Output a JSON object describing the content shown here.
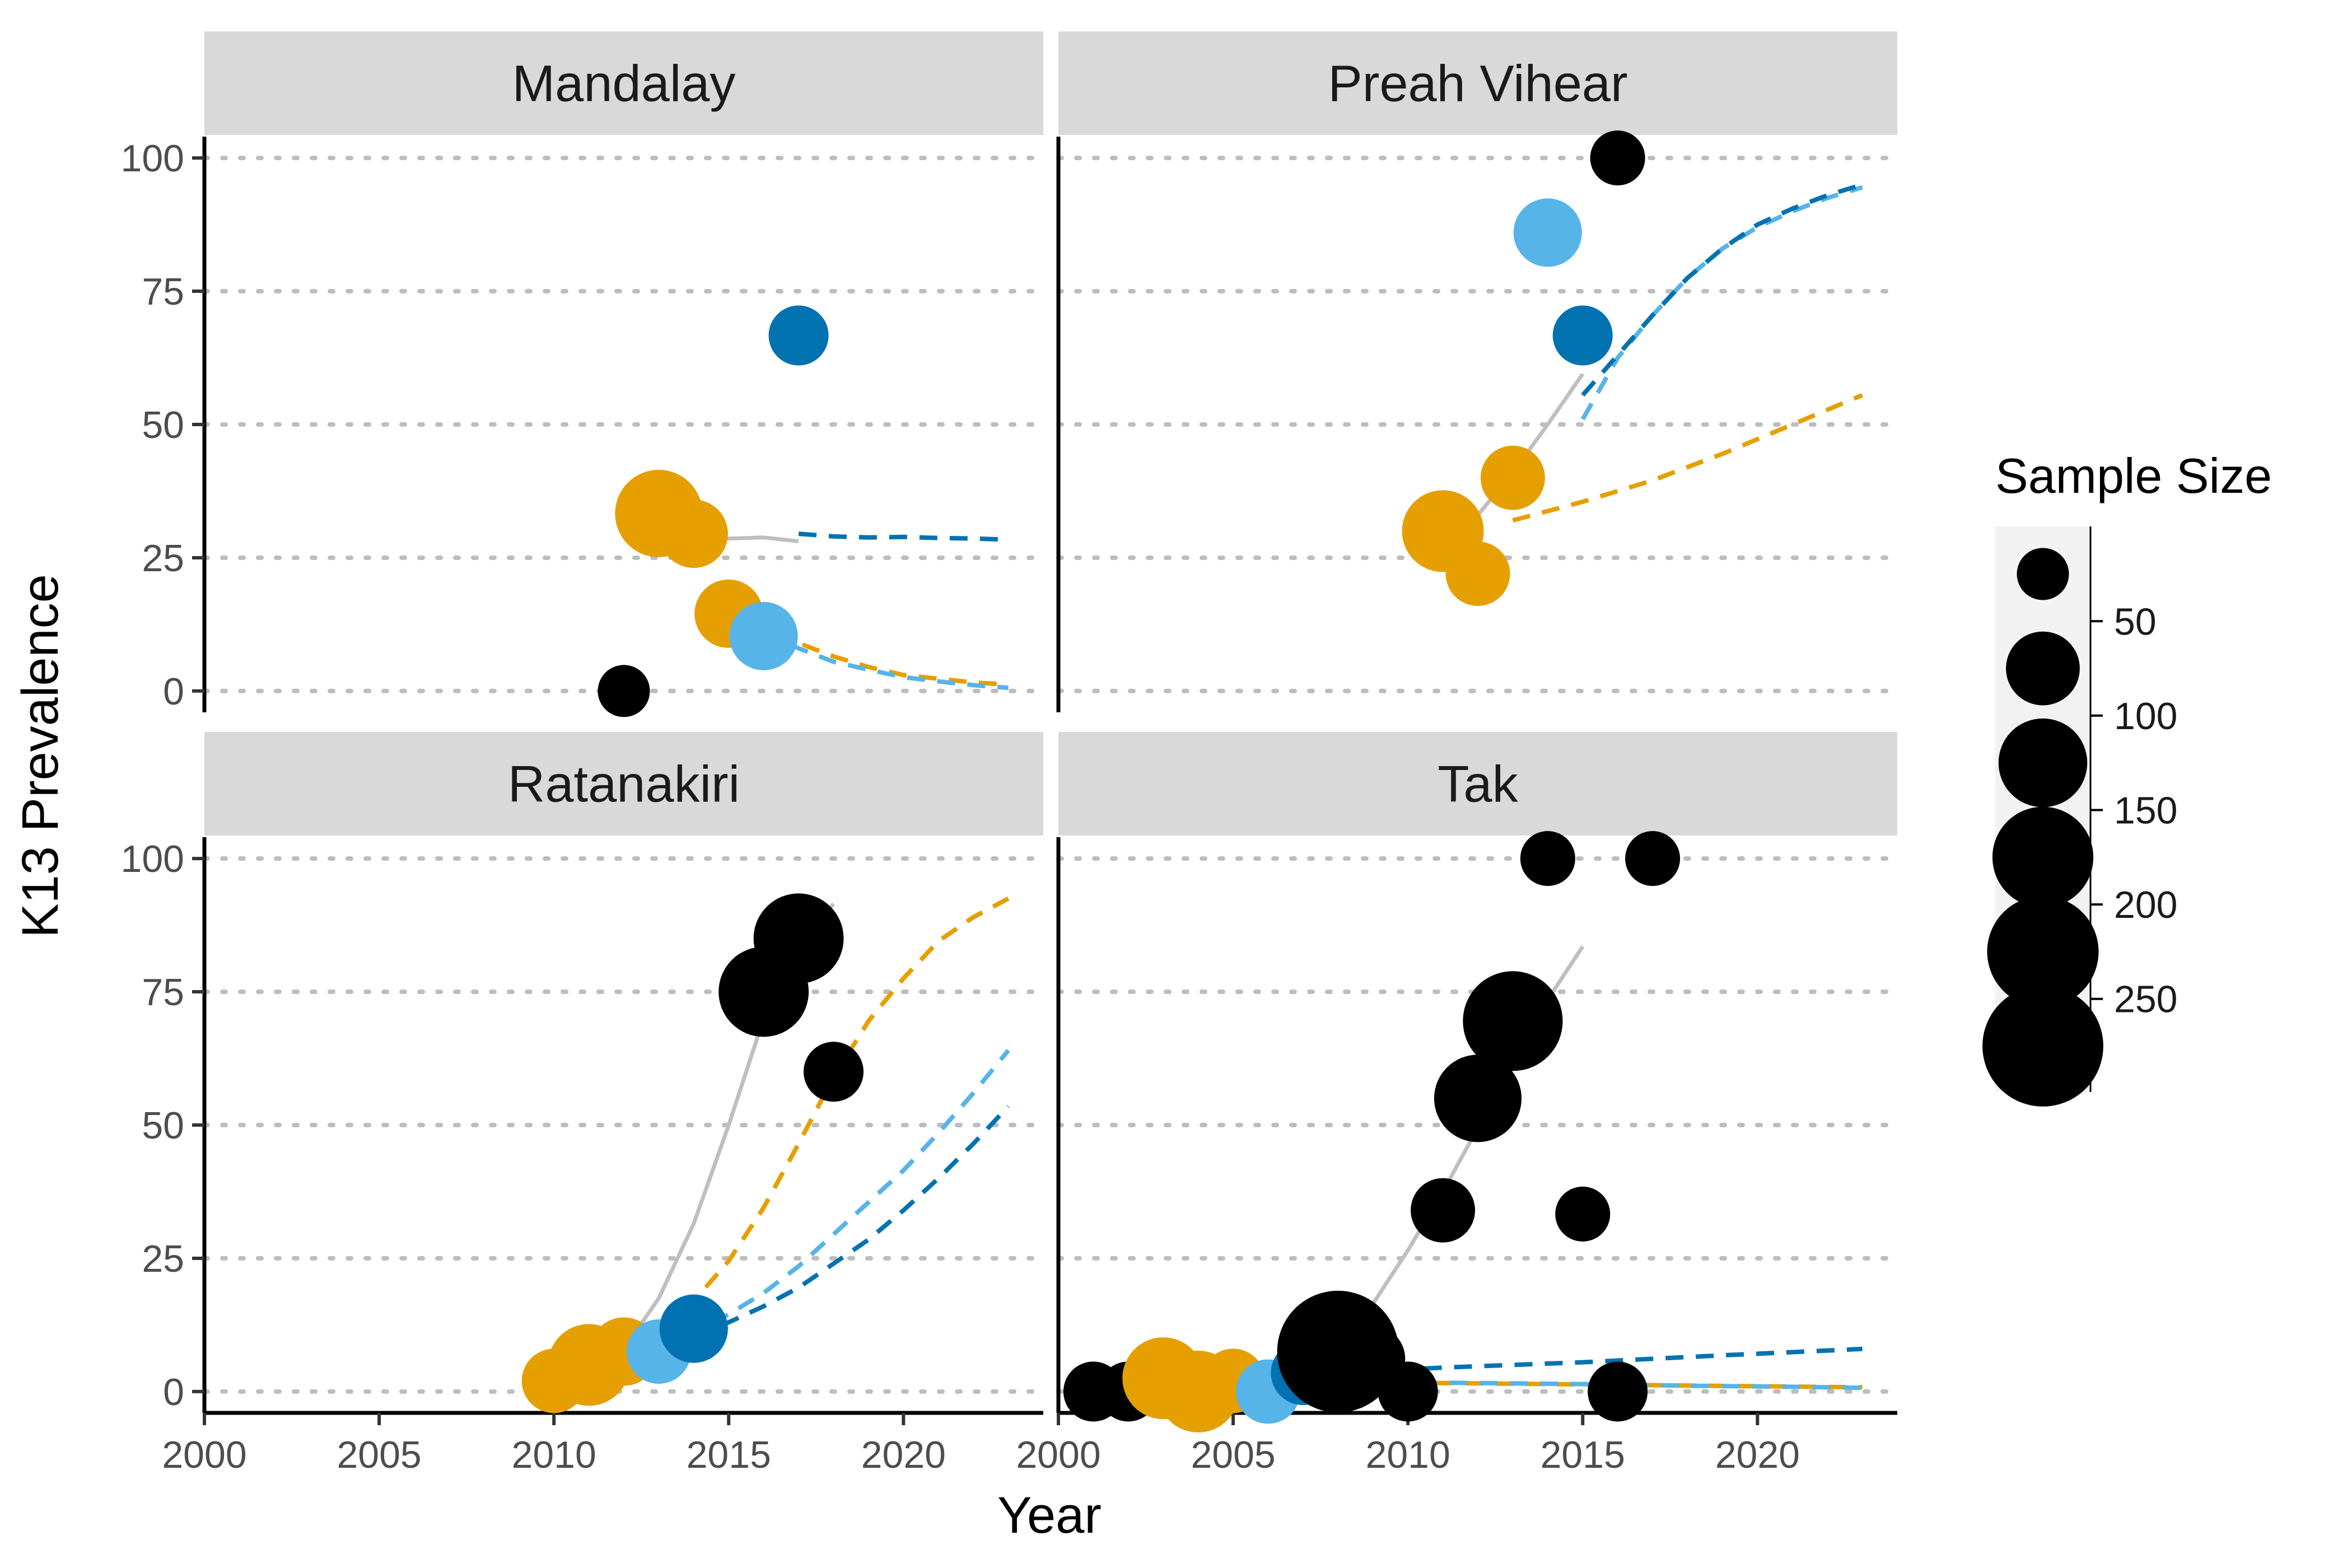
{
  "chart_data": {
    "type": "scatter",
    "xlabel": "Year",
    "ylabel": "K13 Prevalence",
    "xlim": [
      2000,
      2024
    ],
    "ylim": [
      -4,
      104
    ],
    "x_ticks": [
      "2000",
      "2005",
      "2010",
      "2015",
      "2020"
    ],
    "y_ticks": [
      "0",
      "25",
      "50",
      "75",
      "100"
    ],
    "grid": "horizontal dotted",
    "colors": {
      "black": "#000000",
      "orange": "#E69F00",
      "skyblue": "#56B4E9",
      "blue": "#0072B2",
      "grey": "#bfbfbf"
    },
    "legend": {
      "title": "Sample Size",
      "position": "right",
      "labels": [
        "50",
        "100",
        "150",
        "200",
        "250"
      ],
      "label_values": [
        50,
        100,
        150,
        200,
        250
      ],
      "key_values": [
        25,
        75,
        125,
        175,
        225,
        275
      ]
    },
    "panels": [
      {
        "title": "Mandalay",
        "points": [
          {
            "x": 2012,
            "y": 0,
            "n": 25,
            "color": "black"
          },
          {
            "x": 2013,
            "y": 33.3,
            "n": 120,
            "color": "orange"
          },
          {
            "x": 2014,
            "y": 29.5,
            "n": 60,
            "color": "orange"
          },
          {
            "x": 2015,
            "y": 14.5,
            "n": 60,
            "color": "orange"
          },
          {
            "x": 2016,
            "y": 10.3,
            "n": 60,
            "color": "skyblue"
          },
          {
            "x": 2017,
            "y": 66.7,
            "n": 40,
            "color": "blue"
          }
        ],
        "lines": [
          {
            "color": "grey",
            "dashed": false,
            "x": [
              2013,
              2014,
              2015,
              2016,
              2017
            ],
            "y": [
              29.8,
              28.9,
              28.6,
              28.8,
              28.1
            ]
          },
          {
            "color": "blue",
            "dashed": true,
            "x": [
              2017,
              2018,
              2019,
              2020,
              2021,
              2022,
              2023
            ],
            "y": [
              29.5,
              29.0,
              28.8,
              28.9,
              28.7,
              28.6,
              28.4
            ]
          },
          {
            "color": "orange",
            "dashed": true,
            "x": [
              2015,
              2016,
              2017,
              2018,
              2019,
              2020,
              2021,
              2022,
              2023
            ],
            "y": [
              18.5,
              13.0,
              9.0,
              6.5,
              4.5,
              3.0,
              2.3,
              1.6,
              1.2
            ]
          },
          {
            "color": "skyblue",
            "dashed": true,
            "x": [
              2016,
              2017,
              2018,
              2019,
              2020,
              2021,
              2022,
              2023
            ],
            "y": [
              11.0,
              8.0,
              5.5,
              4.0,
              2.6,
              1.8,
              1.1,
              0.6
            ]
          }
        ]
      },
      {
        "title": "Preah Vihear",
        "points": [
          {
            "x": 2011,
            "y": 30,
            "n": 100,
            "color": "orange"
          },
          {
            "x": 2012,
            "y": 22,
            "n": 50,
            "color": "orange"
          },
          {
            "x": 2013,
            "y": 40,
            "n": 50,
            "color": "orange"
          },
          {
            "x": 2014,
            "y": 86,
            "n": 60,
            "color": "skyblue"
          },
          {
            "x": 2015,
            "y": 66.7,
            "n": 40,
            "color": "blue"
          },
          {
            "x": 2016,
            "y": 100,
            "n": 30,
            "color": "black"
          }
        ],
        "lines": [
          {
            "color": "grey",
            "dashed": false,
            "x": [
              2011,
              2012,
              2013,
              2014,
              2015
            ],
            "y": [
              25.5,
              33.0,
              41.0,
              50.0,
              59.5
            ]
          },
          {
            "color": "orange",
            "dashed": true,
            "x": [
              2013,
              2015,
              2017,
              2019,
              2021,
              2023
            ],
            "y": [
              32.0,
              35.5,
              39.5,
              44.5,
              50.0,
              55.5
            ]
          },
          {
            "color": "skyblue",
            "dashed": true,
            "x": [
              2015,
              2016,
              2017,
              2018,
              2019,
              2020,
              2021,
              2022,
              2023
            ],
            "y": [
              51.0,
              62.5,
              70.5,
              77.5,
              83.0,
              87.0,
              90.0,
              92.5,
              94.5
            ]
          },
          {
            "color": "blue",
            "dashed": true,
            "x": [
              2015,
              2016,
              2017,
              2018,
              2019,
              2020,
              2021,
              2022,
              2023
            ],
            "y": [
              55.5,
              63.0,
              70.5,
              77.5,
              83.0,
              87.5,
              90.5,
              93.0,
              95.0
            ]
          }
        ]
      },
      {
        "title": "Ratanakiri",
        "points": [
          {
            "x": 2010,
            "y": 2,
            "n": 50,
            "color": "orange"
          },
          {
            "x": 2011,
            "y": 5,
            "n": 100,
            "color": "orange"
          },
          {
            "x": 2012,
            "y": 7.5,
            "n": 60,
            "color": "orange"
          },
          {
            "x": 2013,
            "y": 7.5,
            "n": 50,
            "color": "skyblue"
          },
          {
            "x": 2014,
            "y": 11.8,
            "n": 60,
            "color": "blue"
          },
          {
            "x": 2016,
            "y": 75,
            "n": 130,
            "color": "black"
          },
          {
            "x": 2017,
            "y": 85,
            "n": 130,
            "color": "black"
          },
          {
            "x": 2018,
            "y": 60,
            "n": 40,
            "color": "black"
          }
        ],
        "lines": [
          {
            "color": "grey",
            "dashed": false,
            "x": [
              2010,
              2011,
              2012,
              2013,
              2014,
              2015,
              2016,
              2017,
              2018
            ],
            "y": [
              1.5,
              3.5,
              8.0,
              17.5,
              31.5,
              50.0,
              70.0,
              84.0,
              91.5
            ]
          },
          {
            "color": "orange",
            "dashed": true,
            "x": [
              2010,
              2011,
              2012,
              2013,
              2014,
              2015,
              2016,
              2017,
              2018,
              2019,
              2020,
              2021,
              2022,
              2023
            ],
            "y": [
              1.8,
              4.2,
              7.2,
              11.2,
              17.0,
              24.5,
              34.5,
              46.5,
              59.0,
              69.5,
              77.5,
              84.5,
              89.0,
              92.5
            ]
          },
          {
            "color": "skyblue",
            "dashed": true,
            "x": [
              2013,
              2014,
              2015,
              2016,
              2017,
              2018,
              2019,
              2020,
              2021,
              2022,
              2023
            ],
            "y": [
              7.5,
              11.0,
              14.5,
              18.5,
              23.5,
              29.5,
              35.5,
              41.5,
              48.5,
              56.0,
              64.0
            ]
          },
          {
            "color": "blue",
            "dashed": true,
            "x": [
              2014,
              2015,
              2016,
              2017,
              2018,
              2019,
              2020,
              2021,
              2022,
              2023
            ],
            "y": [
              10.5,
              13.0,
              16.0,
              19.5,
              24.0,
              28.5,
              34.0,
              40.0,
              46.5,
              53.5
            ]
          }
        ]
      },
      {
        "title": "Tak",
        "points": [
          {
            "x": 2001,
            "y": 0,
            "n": 40,
            "color": "black"
          },
          {
            "x": 2002,
            "y": 0,
            "n": 40,
            "color": "black"
          },
          {
            "x": 2003,
            "y": 2.5,
            "n": 100,
            "color": "orange"
          },
          {
            "x": 2004,
            "y": 0,
            "n": 100,
            "color": "orange"
          },
          {
            "x": 2005,
            "y": 2,
            "n": 50,
            "color": "orange"
          },
          {
            "x": 2006,
            "y": 0,
            "n": 50,
            "color": "skyblue"
          },
          {
            "x": 2007,
            "y": 3.5,
            "n": 50,
            "color": "blue"
          },
          {
            "x": 2008,
            "y": 7.5,
            "n": 280,
            "color": "black"
          },
          {
            "x": 2009,
            "y": 6.2,
            "n": 50,
            "color": "black"
          },
          {
            "x": 2010,
            "y": 0,
            "n": 40,
            "color": "black"
          },
          {
            "x": 2011,
            "y": 34,
            "n": 50,
            "color": "black"
          },
          {
            "x": 2012,
            "y": 55,
            "n": 120,
            "color": "black"
          },
          {
            "x": 2013,
            "y": 69.5,
            "n": 170,
            "color": "black"
          },
          {
            "x": 2014,
            "y": 100,
            "n": 30,
            "color": "black"
          },
          {
            "x": 2015,
            "y": 33.3,
            "n": 30,
            "color": "black"
          },
          {
            "x": 2016,
            "y": 0,
            "n": 40,
            "color": "black"
          },
          {
            "x": 2017,
            "y": 100,
            "n": 30,
            "color": "black"
          }
        ],
        "lines": [
          {
            "color": "grey",
            "dashed": false,
            "x": [
              2003,
              2004,
              2005,
              2006,
              2007,
              2008,
              2009,
              2010,
              2011,
              2012,
              2013,
              2014,
              2015
            ],
            "y": [
              1.0,
              1.5,
              2.5,
              4.0,
              6.5,
              10.0,
              16.5,
              26.5,
              37.5,
              49.5,
              63.0,
              73.5,
              83.5
            ]
          },
          {
            "color": "orange",
            "dashed": true,
            "x": [
              2003,
              2005,
              2008,
              2011,
              2014,
              2017,
              2020,
              2023
            ],
            "y": [
              2.2,
              2.0,
              1.8,
              1.6,
              1.4,
              1.2,
              1.0,
              0.8
            ]
          },
          {
            "color": "skyblue",
            "dashed": true,
            "x": [
              2006,
              2009,
              2012,
              2015,
              2018,
              2021,
              2023
            ],
            "y": [
              2.0,
              1.8,
              1.6,
              1.4,
              1.1,
              0.9,
              0.7
            ]
          },
          {
            "color": "blue",
            "dashed": true,
            "x": [
              2007,
              2011,
              2015,
              2019,
              2023
            ],
            "y": [
              3.2,
              4.5,
              5.5,
              6.8,
              8.0
            ]
          }
        ]
      }
    ]
  }
}
